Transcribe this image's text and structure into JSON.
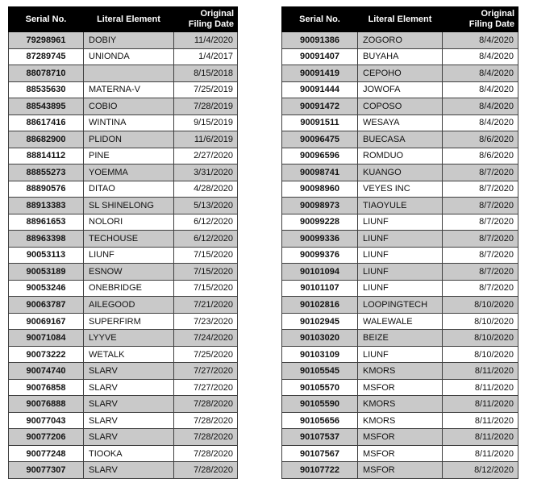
{
  "columns": {
    "serial": "Serial No.",
    "literal": "Literal Element",
    "date_line1": "Original",
    "date_line2": "Filing Date"
  },
  "colors": {
    "header_bg": "#000000",
    "header_text": "#ffffff",
    "row_alt_bg": "#c9c9c9",
    "row_bg": "#ffffff",
    "border": "#3f3f3f"
  },
  "tables": [
    {
      "name": "left",
      "rows": [
        [
          "79298961",
          "DOBIY",
          "11/4/2020"
        ],
        [
          "87289745",
          "UNIONDA",
          "1/4/2017"
        ],
        [
          "88078710",
          "",
          "8/15/2018"
        ],
        [
          "88535630",
          "MATERNA-V",
          "7/25/2019"
        ],
        [
          "88543895",
          "COBIO",
          "7/28/2019"
        ],
        [
          "88617416",
          "WINTINA",
          "9/15/2019"
        ],
        [
          "88682900",
          "PLIDON",
          "11/6/2019"
        ],
        [
          "88814112",
          "PINE",
          "2/27/2020"
        ],
        [
          "88855273",
          "YOEMMA",
          "3/31/2020"
        ],
        [
          "88890576",
          "DITAO",
          "4/28/2020"
        ],
        [
          "88913383",
          "SL SHINELONG",
          "5/13/2020"
        ],
        [
          "88961653",
          "NOLORI",
          "6/12/2020"
        ],
        [
          "88963398",
          "TECHOUSE",
          "6/12/2020"
        ],
        [
          "90053113",
          "LIUNF",
          "7/15/2020"
        ],
        [
          "90053189",
          "ESNOW",
          "7/15/2020"
        ],
        [
          "90053246",
          "ONEBRIDGE",
          "7/15/2020"
        ],
        [
          "90063787",
          "AILEGOOD",
          "7/21/2020"
        ],
        [
          "90069167",
          "SUPERFIRM",
          "7/23/2020"
        ],
        [
          "90071084",
          "LYYVE",
          "7/24/2020"
        ],
        [
          "90073222",
          "WETALK",
          "7/25/2020"
        ],
        [
          "90074740",
          "SLARV",
          "7/27/2020"
        ],
        [
          "90076858",
          "SLARV",
          "7/27/2020"
        ],
        [
          "90076888",
          "SLARV",
          "7/28/2020"
        ],
        [
          "90077043",
          "SLARV",
          "7/28/2020"
        ],
        [
          "90077206",
          "SLARV",
          "7/28/2020"
        ],
        [
          "90077248",
          "TIOOKA",
          "7/28/2020"
        ],
        [
          "90077307",
          "SLARV",
          "7/28/2020"
        ]
      ]
    },
    {
      "name": "right",
      "rows": [
        [
          "90091386",
          "ZOGORO",
          "8/4/2020"
        ],
        [
          "90091407",
          "BUYAHA",
          "8/4/2020"
        ],
        [
          "90091419",
          "CEPOHO",
          "8/4/2020"
        ],
        [
          "90091444",
          "JOWOFA",
          "8/4/2020"
        ],
        [
          "90091472",
          "COPOSO",
          "8/4/2020"
        ],
        [
          "90091511",
          "WESAYA",
          "8/4/2020"
        ],
        [
          "90096475",
          "BUECASA",
          "8/6/2020"
        ],
        [
          "90096596",
          "ROMDUO",
          "8/6/2020"
        ],
        [
          "90098741",
          "KUANGO",
          "8/7/2020"
        ],
        [
          "90098960",
          "VEYES INC",
          "8/7/2020"
        ],
        [
          "90098973",
          "TIAOYULE",
          "8/7/2020"
        ],
        [
          "90099228",
          "LIUNF",
          "8/7/2020"
        ],
        [
          "90099336",
          "LIUNF",
          "8/7/2020"
        ],
        [
          "90099376",
          "LIUNF",
          "8/7/2020"
        ],
        [
          "90101094",
          "LIUNF",
          "8/7/2020"
        ],
        [
          "90101107",
          "LIUNF",
          "8/7/2020"
        ],
        [
          "90102816",
          "LOOPINGTECH",
          "8/10/2020"
        ],
        [
          "90102945",
          "WALEWALE",
          "8/10/2020"
        ],
        [
          "90103020",
          "BEIZE",
          "8/10/2020"
        ],
        [
          "90103109",
          "LIUNF",
          "8/10/2020"
        ],
        [
          "90105545",
          "KMORS",
          "8/11/2020"
        ],
        [
          "90105570",
          "MSFOR",
          "8/11/2020"
        ],
        [
          "90105590",
          "KMORS",
          "8/11/2020"
        ],
        [
          "90105656",
          "KMORS",
          "8/11/2020"
        ],
        [
          "90107537",
          "MSFOR",
          "8/11/2020"
        ],
        [
          "90107567",
          "MSFOR",
          "8/11/2020"
        ],
        [
          "90107722",
          "MSFOR",
          "8/12/2020"
        ]
      ]
    }
  ]
}
